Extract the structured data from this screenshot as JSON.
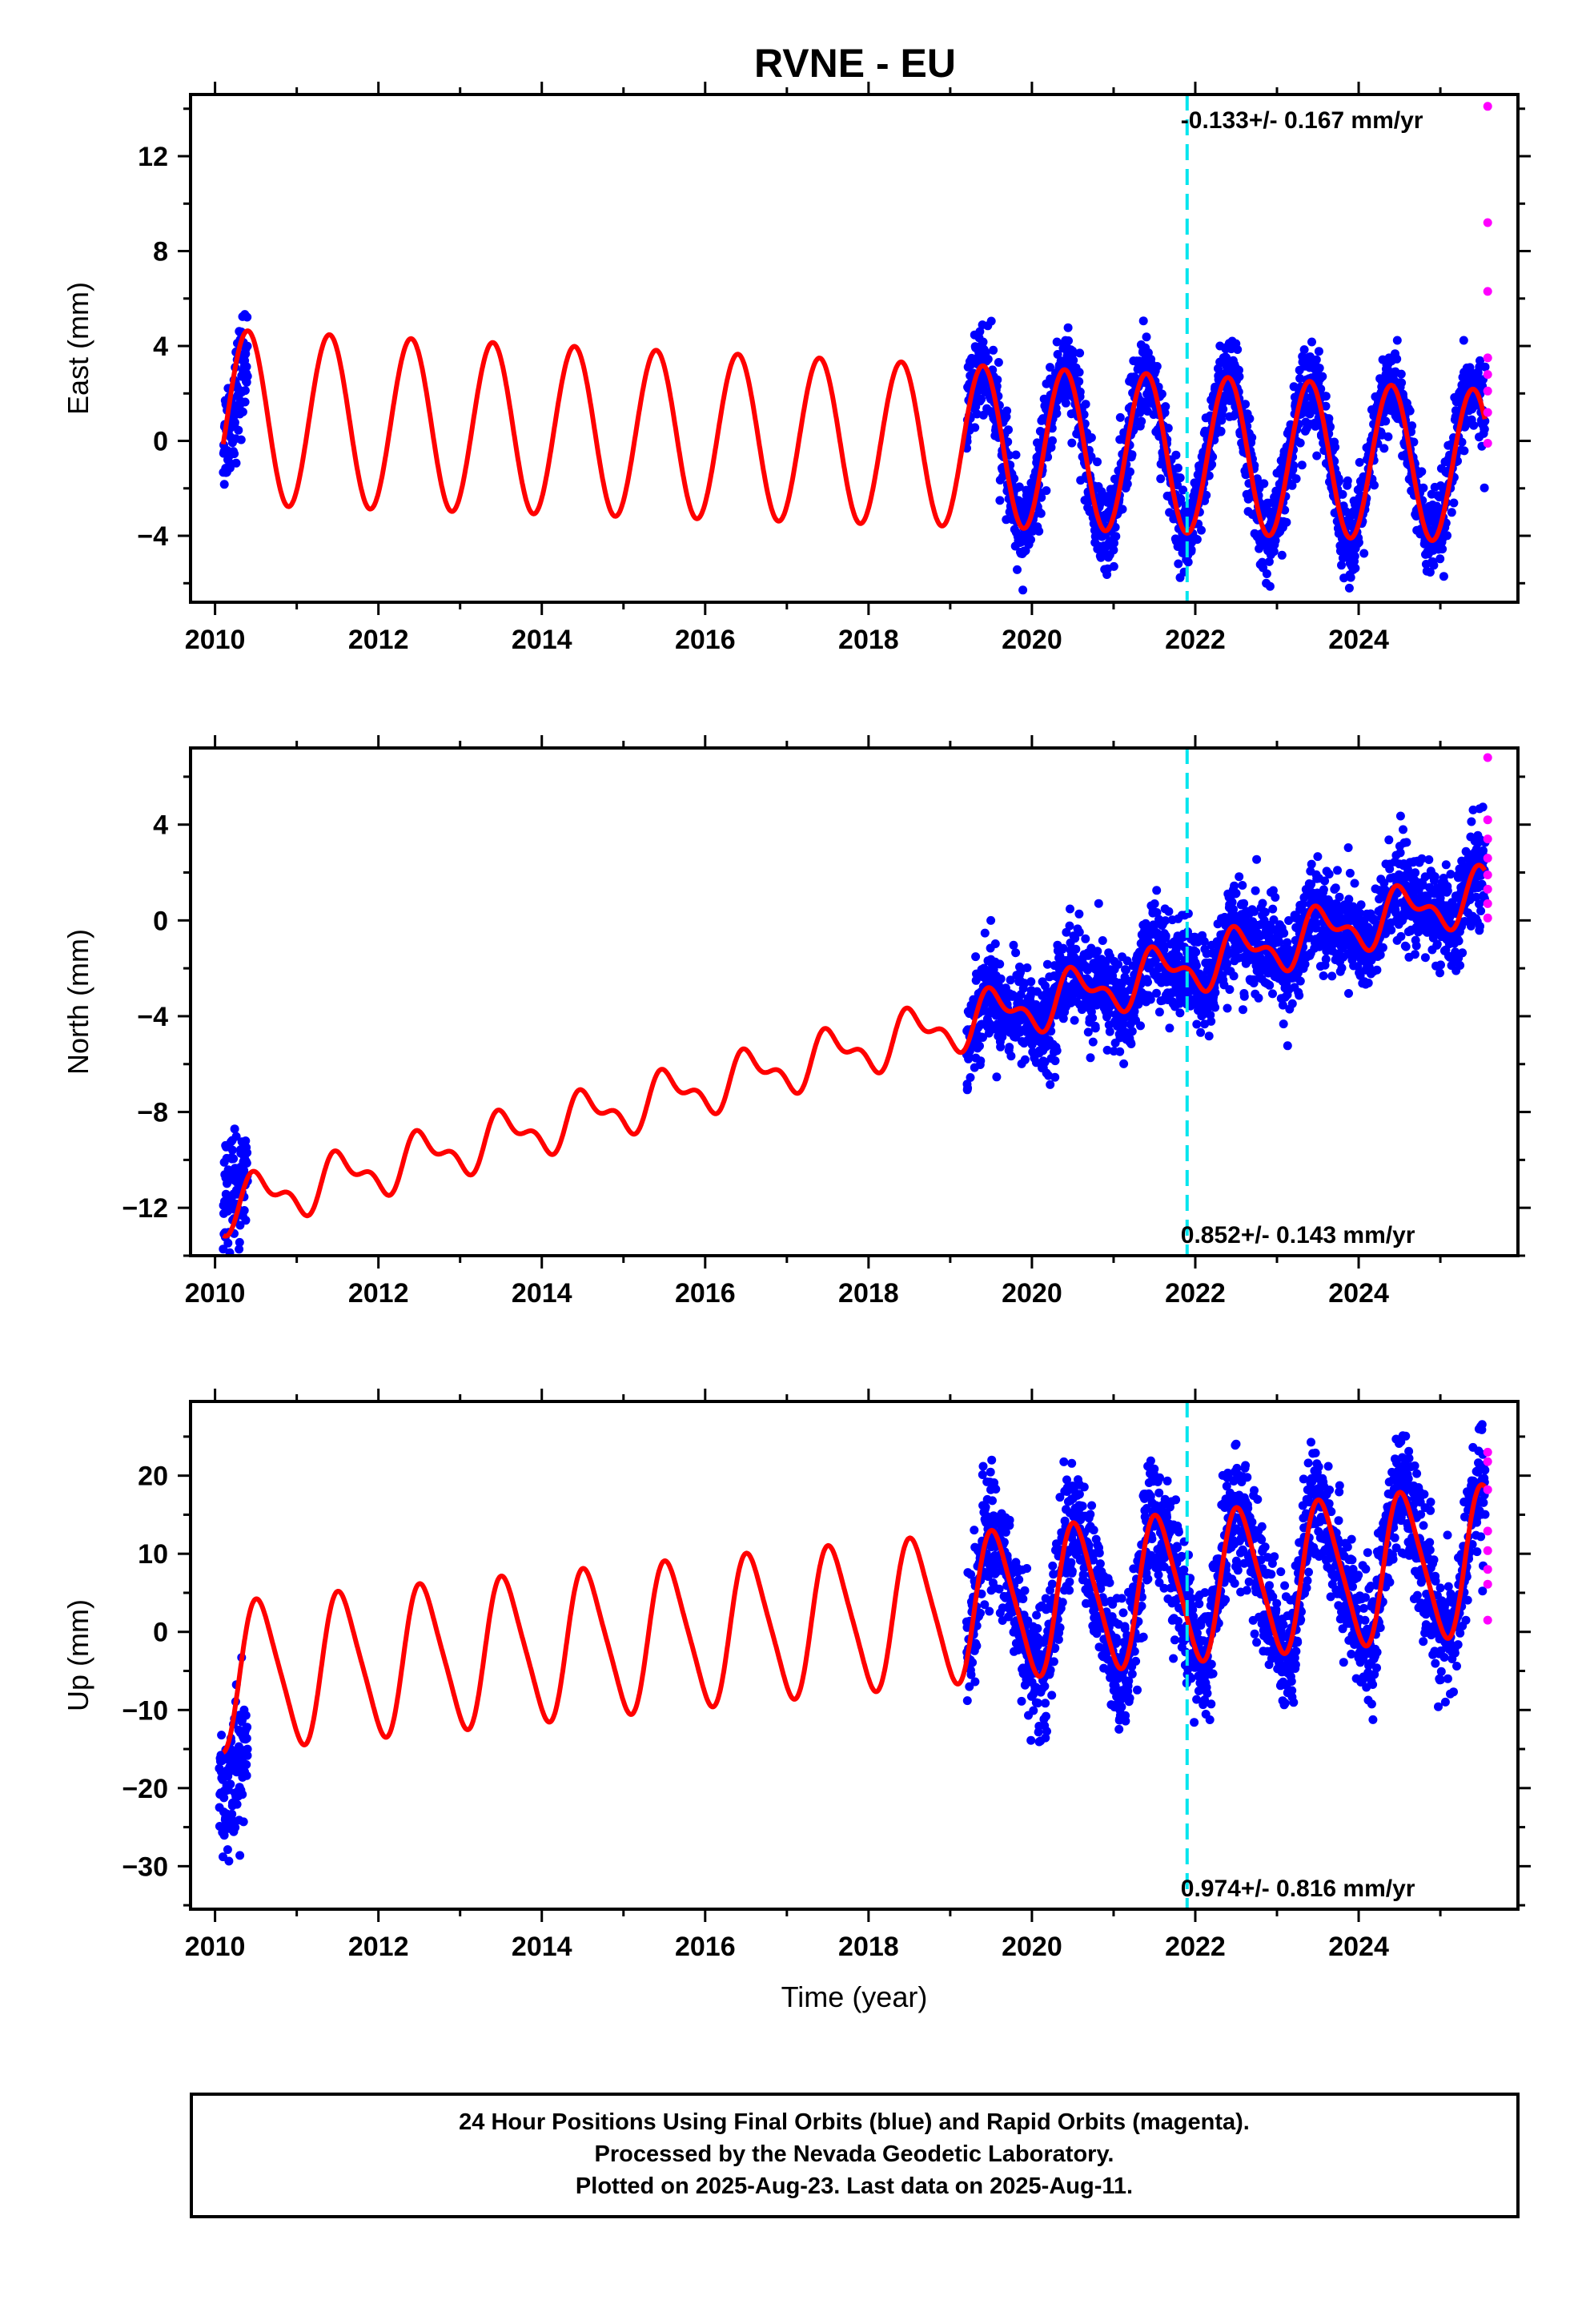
{
  "figure": {
    "title": "RVNE - EU",
    "footer": {
      "line1": "24 Hour Positions Using Final Orbits (blue) and Rapid Orbits (magenta).",
      "line2": "Processed by the Nevada Geodetic Laboratory.",
      "line3": "Plotted on 2025-Aug-23. Last data on 2025-Aug-11."
    },
    "colors": {
      "final_orbits": "#0000ff",
      "rapid_orbits": "#ff00ff",
      "model_fit": "#ff0000",
      "equipment_change": "#00e5ee",
      "frame": "#000000"
    }
  },
  "chart_data": [
    {
      "type": "scatter",
      "panel": "east",
      "ylabel": "East (mm)",
      "xlabel": "",
      "xlim": [
        2009.7,
        2025.95
      ],
      "ylim": [
        -6.8,
        14.6
      ],
      "xticks": [
        2010,
        2012,
        2014,
        2016,
        2018,
        2020,
        2022,
        2024
      ],
      "yticks": [
        -4,
        0,
        4,
        8,
        12
      ],
      "rate_label": "-0.133+/- 0.167 mm/yr",
      "rate_position": "top",
      "vertical_line_year": 2021.9,
      "model": {
        "offset": 1.0,
        "rate": -0.133,
        "amp_start": 3.7,
        "amp_end": 3.2,
        "phase_year": 2010.15,
        "semiannual": 0.0
      },
      "final_orbits": {
        "segments": [
          {
            "start": 2010.1,
            "end": 2010.4,
            "trend": [
              -0.1,
              3.8
            ],
            "scatter": 1.2
          },
          {
            "start": 2019.2,
            "end": 2025.55,
            "trend": null,
            "scatter": 0.9
          }
        ]
      },
      "rapid_orbits": {
        "x": [
          2025.58,
          2025.58,
          2025.58,
          2025.58,
          2025.58,
          2025.58,
          2025.58,
          2025.58
        ],
        "y": [
          14.1,
          9.2,
          6.3,
          3.5,
          2.8,
          2.1,
          1.2,
          -0.1
        ]
      }
    },
    {
      "type": "scatter",
      "panel": "north",
      "ylabel": "North (mm)",
      "xlabel": "",
      "xlim": [
        2009.7,
        2025.95
      ],
      "ylim": [
        -14.0,
        7.2
      ],
      "xticks": [
        2010,
        2012,
        2014,
        2016,
        2018,
        2020,
        2022,
        2024
      ],
      "yticks": [
        -12,
        -8,
        -4,
        0,
        4
      ],
      "rate_label": "0.852+/- 0.143 mm/yr",
      "rate_position": "bottom",
      "vertical_line_year": 2021.9,
      "model": {
        "offset": -12.0,
        "rate": 0.852,
        "amp_start": 0.9,
        "amp_end": 0.9,
        "phase_year": 2010.3,
        "semiannual": 0.5
      },
      "final_orbits": {
        "segments": [
          {
            "start": 2010.1,
            "end": 2010.4,
            "trend": [
              -11.5,
              -10.5
            ],
            "scatter": 1.1
          },
          {
            "start": 2019.2,
            "end": 2025.55,
            "trend": null,
            "scatter": 1.0
          }
        ]
      },
      "rapid_orbits": {
        "x": [
          2025.58,
          2025.58,
          2025.58,
          2025.58,
          2025.58,
          2025.58,
          2025.58,
          2025.58
        ],
        "y": [
          6.8,
          4.2,
          3.4,
          2.6,
          1.9,
          1.3,
          0.7,
          0.1
        ]
      }
    },
    {
      "type": "scatter",
      "panel": "up",
      "ylabel": "Up (mm)",
      "xlabel": "Time (year)",
      "xlim": [
        2009.7,
        2025.95
      ],
      "ylim": [
        -35.5,
        29.5
      ],
      "xticks": [
        2010,
        2012,
        2014,
        2016,
        2018,
        2020,
        2022,
        2024
      ],
      "yticks": [
        -30,
        -20,
        -10,
        0,
        10,
        20
      ],
      "rate_label": "0.974+/- 0.816 mm/yr",
      "rate_position": "bottom",
      "vertical_line_year": 2021.9,
      "model": {
        "offset": -5.8,
        "rate": 0.974,
        "amp_start": 9.2,
        "amp_end": 9.2,
        "phase_year": 2010.3,
        "semiannual": 1.5
      },
      "final_orbits": {
        "segments": [
          {
            "start": 2010.05,
            "end": 2010.4,
            "trend": [
              -22.0,
              -14.0
            ],
            "scatter": 4.5
          },
          {
            "start": 2019.2,
            "end": 2025.55,
            "trend": null,
            "scatter": 4.0
          }
        ]
      },
      "rapid_orbits": {
        "x": [
          2025.58,
          2025.58,
          2025.58,
          2025.58,
          2025.58,
          2025.58,
          2025.58,
          2025.58
        ],
        "y": [
          23.0,
          21.8,
          18.2,
          12.9,
          10.4,
          8.0,
          6.1,
          1.5
        ]
      }
    }
  ]
}
